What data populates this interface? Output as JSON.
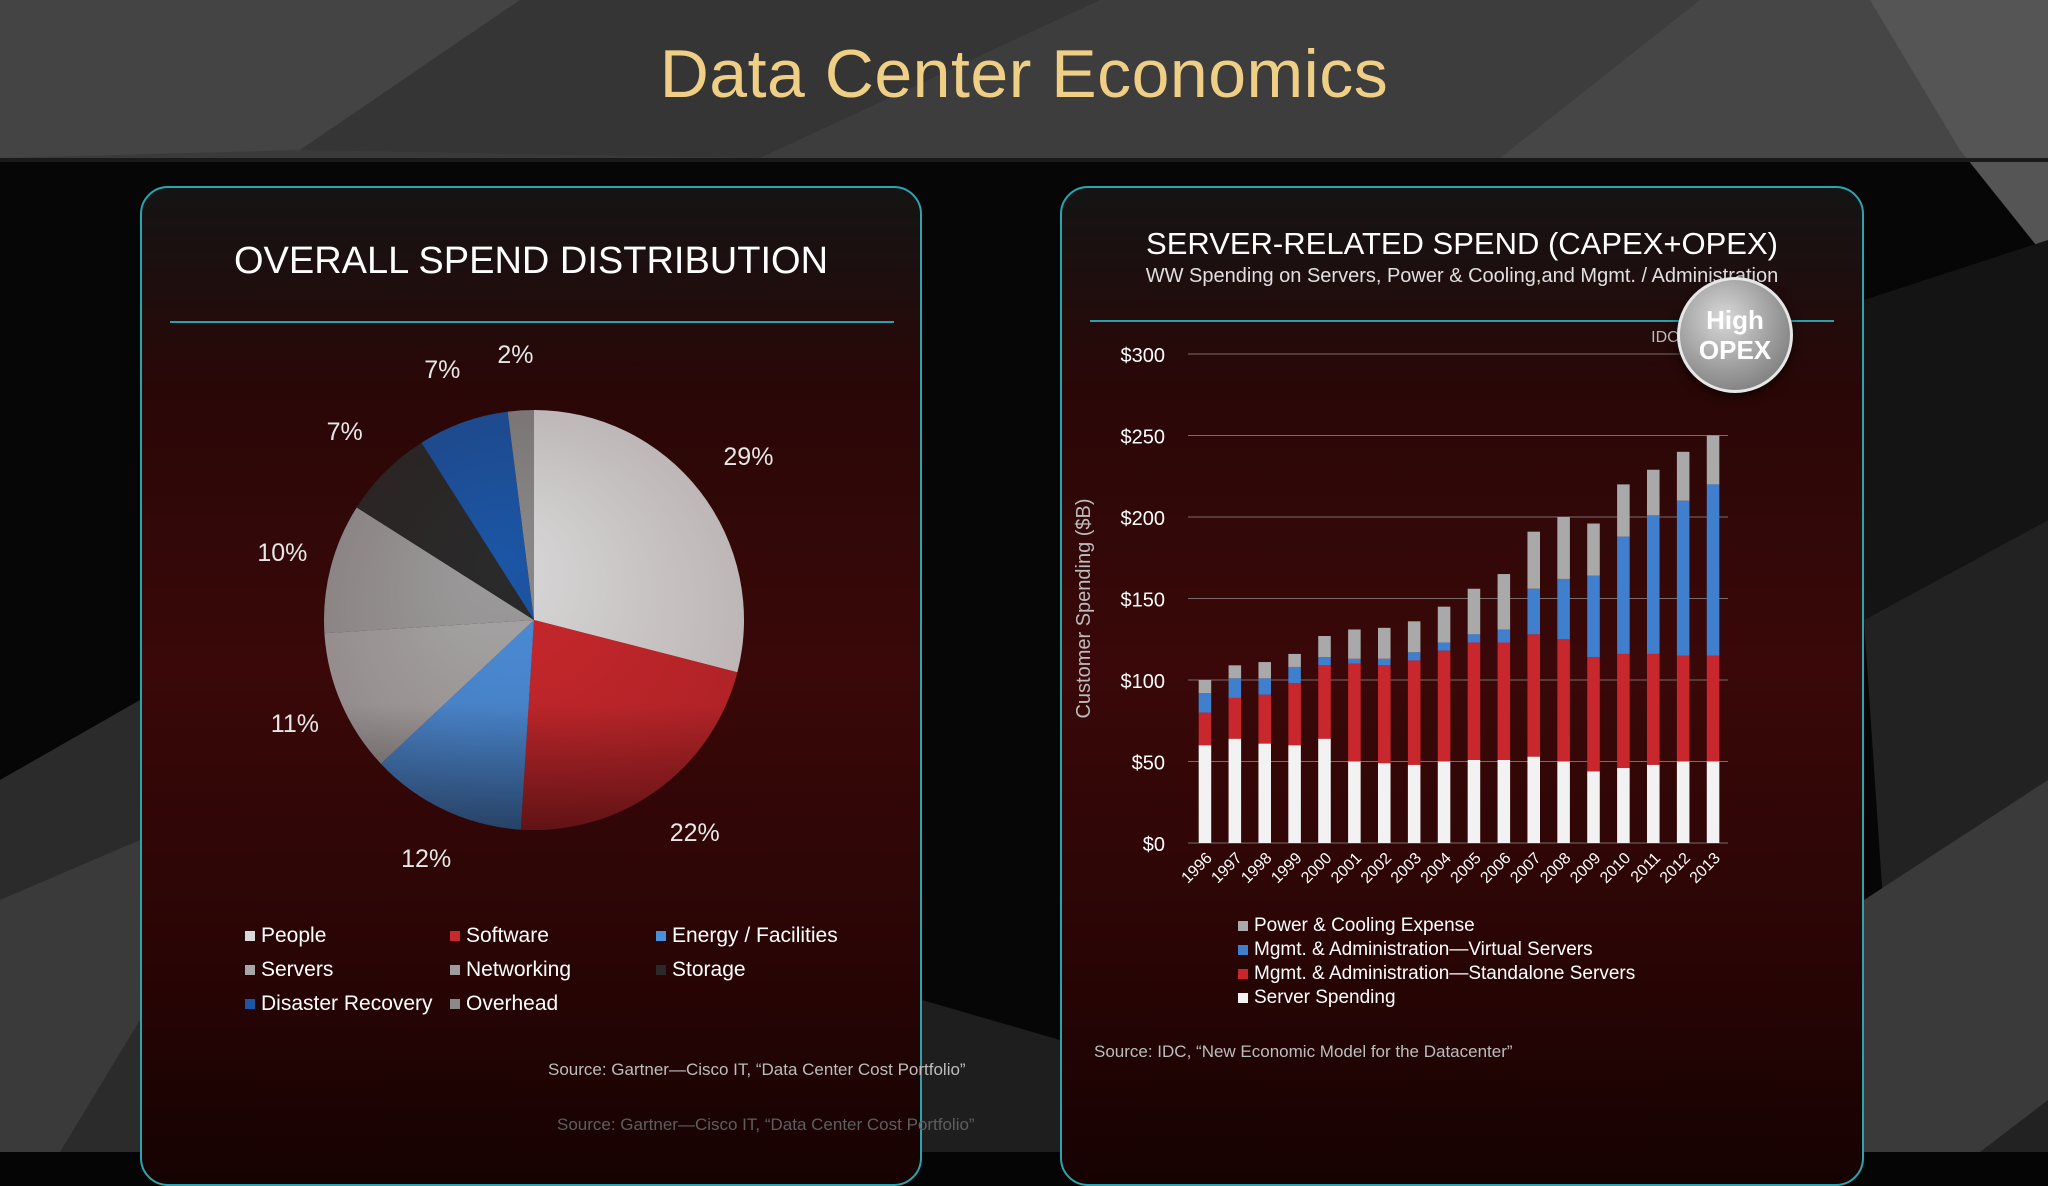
{
  "slide": {
    "title": "Data Center Economics",
    "footer_source": "Source: Gartner—Cisco IT, “Data Center Cost Portfolio”"
  },
  "left_panel": {
    "title": "OVERALL SPEND DISTRIBUTION",
    "source": "Source: Gartner—Cisco IT, “Data Center Cost Portfolio”"
  },
  "right_panel": {
    "title": "SERVER-RELATED SPEND (CAPEX+OPEX)",
    "subtitle": "WW Spending on Servers, Power & Cooling,and Mgmt. / Administration",
    "badge_line1": "High",
    "badge_line2": "OPEX",
    "source": "Source: IDC, “New Economic Model for the Datacenter”"
  },
  "chart_data": [
    {
      "type": "pie",
      "title": "OVERALL SPEND DISTRIBUTION",
      "slices": [
        {
          "label": "People",
          "value": 29,
          "display": "29%",
          "color": "#d9d9d9"
        },
        {
          "label": "Software",
          "value": 22,
          "display": "22%",
          "color": "#c9282d"
        },
        {
          "label": "Energy / Facilities",
          "value": 12,
          "display": "12%",
          "color": "#4a8fdc"
        },
        {
          "label": "Servers",
          "value": 11,
          "display": "11%",
          "color": "#a7a7a7"
        },
        {
          "label": "Networking",
          "value": 10,
          "display": "10%",
          "color": "#9c9c9c"
        },
        {
          "label": "Storage",
          "value": 7,
          "display": "7%",
          "color": "#2a2a2a"
        },
        {
          "label": "Disaster Recovery",
          "value": 7,
          "display": "7%",
          "color": "#1b56a6"
        },
        {
          "label": "Overhead",
          "value": 2,
          "display": "2%",
          "color": "#8a8a8a"
        }
      ],
      "legend_placement": "bottom"
    },
    {
      "type": "bar",
      "stacked": true,
      "title": "SERVER-RELATED SPEND (CAPEX+OPEX)",
      "ylabel": "Customer Spending ($B)",
      "annotation": "IDC, 2011",
      "categories": [
        "1996",
        "1997",
        "1998",
        "1999",
        "2000",
        "2001",
        "2002",
        "2003",
        "2004",
        "2005",
        "2006",
        "2007",
        "2008",
        "2009",
        "2010",
        "2011",
        "2012",
        "2013"
      ],
      "y_ticks": [
        "$0",
        "$50",
        "$100",
        "$150",
        "$200",
        "$250",
        "$300"
      ],
      "ylim": [
        0,
        300
      ],
      "series": [
        {
          "name": "Server Spending",
          "color": "#f2f2f2",
          "values": [
            60,
            64,
            61,
            60,
            64,
            50,
            49,
            48,
            50,
            51,
            51,
            53,
            50,
            44,
            46,
            48,
            50,
            50
          ]
        },
        {
          "name": "Mgmt. & Administration—Standalone Servers",
          "color": "#c8282d",
          "values": [
            20,
            25,
            30,
            38,
            45,
            60,
            60,
            64,
            68,
            72,
            72,
            75,
            75,
            70,
            70,
            68,
            65,
            65
          ]
        },
        {
          "name": "Mgmt. & Administration—Virtual Servers",
          "color": "#3f7fce",
          "values": [
            12,
            12,
            10,
            10,
            5,
            3,
            4,
            5,
            5,
            5,
            8,
            28,
            37,
            50,
            72,
            85,
            95,
            105
          ]
        },
        {
          "name": "Power & Cooling Expense",
          "color": "#a9a9a9",
          "values": [
            8,
            8,
            10,
            8,
            13,
            18,
            19,
            19,
            22,
            28,
            34,
            35,
            38,
            32,
            32,
            28,
            30,
            30
          ]
        }
      ],
      "legend_order": [
        "Power & Cooling Expense",
        "Mgmt. & Administration—Virtual Servers",
        "Mgmt. & Administration—Standalone Servers",
        "Server Spending"
      ],
      "legend_placement": "bottom",
      "grid": true
    }
  ]
}
